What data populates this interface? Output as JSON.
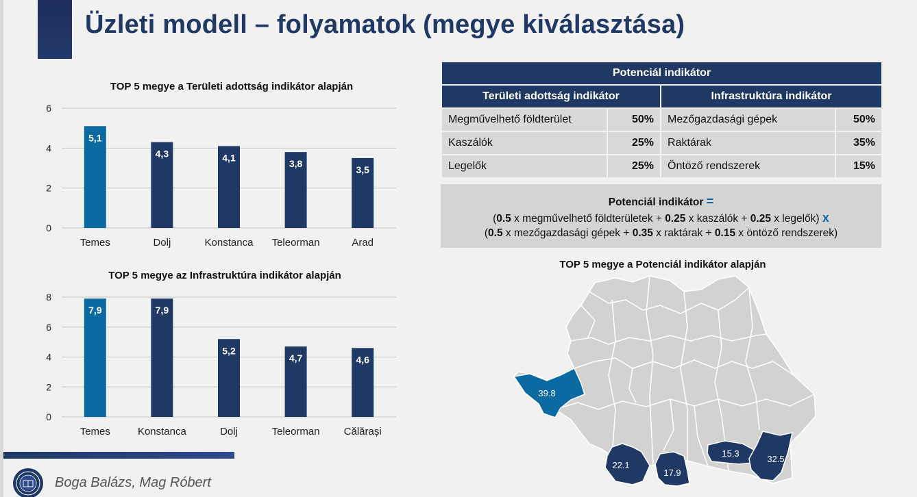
{
  "title": "Üzleti modell – folyamatok (megye kiválasztása)",
  "colors": {
    "navy": "#1f3864",
    "highlight": "#0a6aa1",
    "map_base": "#d2d2d2"
  },
  "chart_data": [
    {
      "type": "bar",
      "title": "TOP 5 megye a Területi adottság indikátor alapján",
      "categories": [
        "Temes",
        "Dolj",
        "Konstanca",
        "Teleorman",
        "Arad"
      ],
      "values": [
        5.1,
        4.3,
        4.1,
        3.8,
        3.5
      ],
      "value_labels": [
        "5,1",
        "4,3",
        "4,1",
        "3,8",
        "3,5"
      ],
      "ylim": [
        0,
        6
      ],
      "yticks": [
        0,
        2,
        4,
        6
      ],
      "grid": true,
      "highlight_index": 0
    },
    {
      "type": "bar",
      "title": "TOP 5 megye az Infrastruktúra indikátor alapján",
      "categories": [
        "Temes",
        "Konstanca",
        "Dolj",
        "Teleorman",
        "Călărași"
      ],
      "values": [
        7.9,
        7.9,
        5.2,
        4.7,
        4.6
      ],
      "value_labels": [
        "7,9",
        "7,9",
        "5,2",
        "4,7",
        "4,6"
      ],
      "ylim": [
        0,
        8
      ],
      "yticks": [
        0,
        2,
        4,
        6,
        8
      ],
      "grid": true,
      "highlight_index": 0
    }
  ],
  "indicator_table": {
    "header": "Potenciál indikátor",
    "left_header": "Területi adottság indikátor",
    "right_header": "Infrastruktúra indikátor",
    "rows": [
      {
        "left_name": "Megművelhető földterület",
        "left_pct": "50%",
        "right_name": "Mezőgazdasági gépek",
        "right_pct": "50%"
      },
      {
        "left_name": "Kaszálók",
        "left_pct": "25%",
        "right_name": "Raktárak",
        "right_pct": "35%"
      },
      {
        "left_name": "Legelők",
        "left_pct": "25%",
        "right_name": "Öntöző rendszerek",
        "right_pct": "15%"
      }
    ]
  },
  "formula": {
    "title": "Potenciál indikátor",
    "equals": "=",
    "times": "x",
    "line1": {
      "open": "(",
      "c1": "0.5",
      "t1": " x megművelhető földterületek + ",
      "c2": "0.25",
      "t2": " x kaszálók + ",
      "c3": "0.25",
      "t3": " x legelők)"
    },
    "line2": {
      "open": "(",
      "c1": "0.5",
      "t1": " x mezőgazdasági gépek + ",
      "c2": "0.35",
      "t2": " x raktárak + ",
      "c3": "0.15",
      "t3": " x öntöző rendszerek)"
    }
  },
  "map": {
    "title": "TOP 5 megye a Potenciál indikátor alapján",
    "highlighted": [
      {
        "label": "39.8",
        "color": "#0a6aa1"
      },
      {
        "label": "22.1",
        "color": "#1f3864"
      },
      {
        "label": "17.9",
        "color": "#1f3864"
      },
      {
        "label": "15.3",
        "color": "#1f3864"
      },
      {
        "label": "32.5",
        "color": "#1f3864"
      }
    ]
  },
  "footer": {
    "authors": "Boga Balázs, Mag Róbert"
  }
}
